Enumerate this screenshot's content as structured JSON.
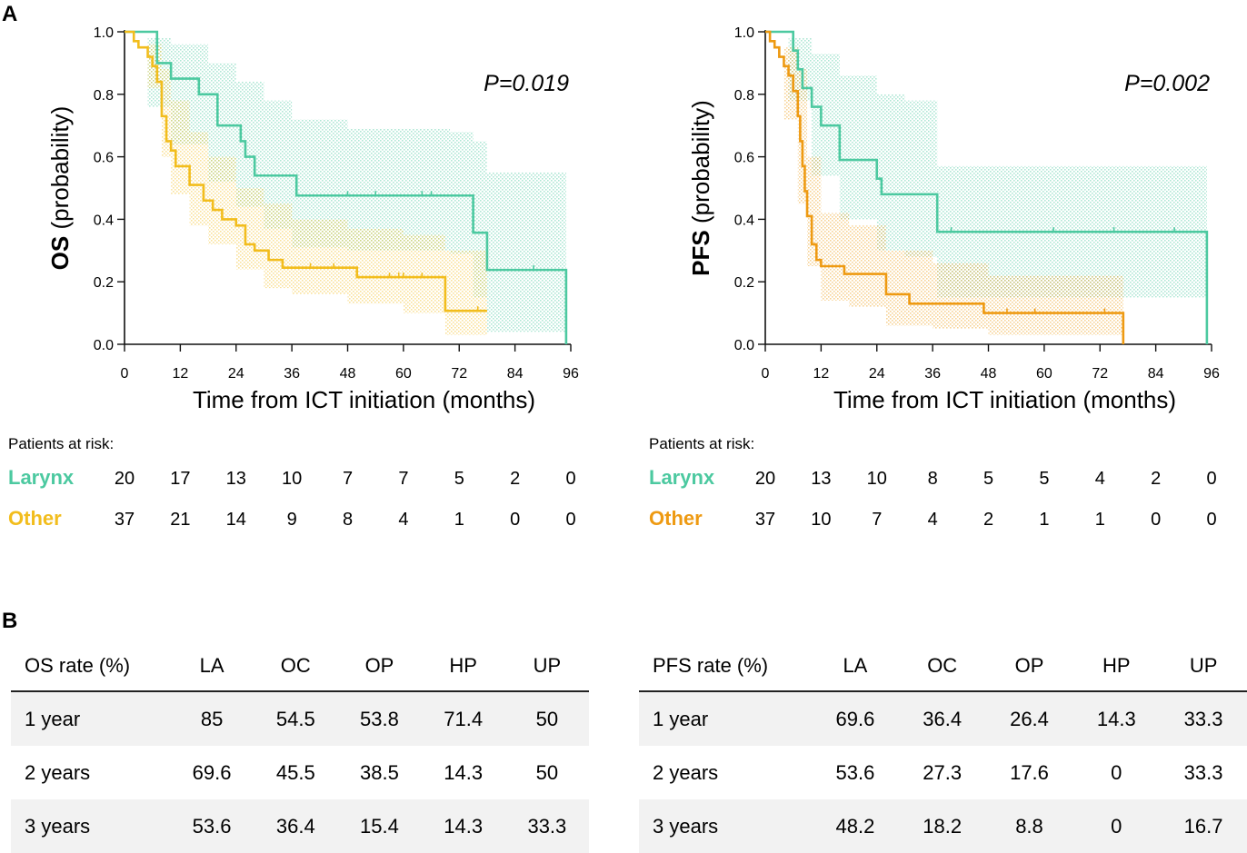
{
  "panel_labels": {
    "a": "A",
    "b": "B"
  },
  "colors": {
    "larynx": "#4cc9a0",
    "other_os": "#f2bd1d",
    "other_pfs": "#ee9a12",
    "axis": "#111111"
  },
  "chart_data": [
    {
      "id": "os",
      "type": "line",
      "title": "",
      "ylabel_bold": "OS",
      "ylabel_rest": " (probability)",
      "xlabel": "Time from ICT initiation (months)",
      "xlim": [
        0,
        96
      ],
      "ylim": [
        0,
        1
      ],
      "xticks": [
        0,
        12,
        24,
        36,
        48,
        60,
        72,
        84,
        96
      ],
      "yticks": [
        "0.0",
        "0.2",
        "0.4",
        "0.6",
        "0.8",
        "1.0"
      ],
      "pvalue": "P=0.019",
      "series": [
        {
          "name": "Larynx",
          "color": "#4cc9a0",
          "steps": [
            [
              0,
              1
            ],
            [
              7,
              0.9
            ],
            [
              10,
              0.85
            ],
            [
              16,
              0.8
            ],
            [
              20,
              0.7
            ],
            [
              25,
              0.65
            ],
            [
              26,
              0.6
            ],
            [
              28,
              0.54
            ],
            [
              37,
              0.476
            ],
            [
              75,
              0.357
            ],
            [
              78,
              0.238
            ],
            [
              95,
              0
            ]
          ],
          "end": 95,
          "censor": [
            [
              37,
              0.476
            ],
            [
              48,
              0.476
            ],
            [
              54,
              0.476
            ],
            [
              64,
              0.476
            ],
            [
              66,
              0.476
            ],
            [
              88,
              0.238
            ]
          ],
          "ci": [
            [
              0,
              1,
              1
            ],
            [
              5,
              0.98,
              0.76
            ],
            [
              10,
              0.96,
              0.64
            ],
            [
              18,
              0.9,
              0.52
            ],
            [
              24,
              0.84,
              0.44
            ],
            [
              30,
              0.78,
              0.37
            ],
            [
              36,
              0.72,
              0.31
            ],
            [
              48,
              0.69,
              0.3
            ],
            [
              70,
              0.68,
              0.29
            ],
            [
              75,
              0.65,
              0.15
            ],
            [
              78,
              0.55,
              0.04
            ],
            [
              95,
              0.5,
              0
            ]
          ]
        },
        {
          "name": "Other",
          "color": "#f2bd1d",
          "steps": [
            [
              0,
              1
            ],
            [
              2,
              0.97
            ],
            [
              3,
              0.95
            ],
            [
              5,
              0.92
            ],
            [
              6,
              0.89
            ],
            [
              7,
              0.84
            ],
            [
              8,
              0.73
            ],
            [
              9,
              0.65
            ],
            [
              10,
              0.62
            ],
            [
              11,
              0.57
            ],
            [
              14,
              0.51
            ],
            [
              17,
              0.46
            ],
            [
              19,
              0.43
            ],
            [
              21,
              0.4
            ],
            [
              24,
              0.38
            ],
            [
              26,
              0.32
            ],
            [
              28,
              0.3
            ],
            [
              31,
              0.27
            ],
            [
              34,
              0.245
            ],
            [
              50,
              0.215
            ],
            [
              69,
              0.107
            ],
            [
              78,
              0.107
            ]
          ],
          "end": 78,
          "censor": [
            [
              40,
              0.245
            ],
            [
              45,
              0.245
            ],
            [
              57,
              0.215
            ],
            [
              59,
              0.215
            ],
            [
              60,
              0.215
            ],
            [
              64,
              0.215
            ],
            [
              76,
              0.107
            ]
          ],
          "ci": [
            [
              0,
              1,
              1
            ],
            [
              5,
              0.96,
              0.82
            ],
            [
              8,
              0.88,
              0.6
            ],
            [
              10,
              0.78,
              0.48
            ],
            [
              14,
              0.68,
              0.38
            ],
            [
              18,
              0.6,
              0.32
            ],
            [
              24,
              0.5,
              0.24
            ],
            [
              30,
              0.45,
              0.18
            ],
            [
              36,
              0.4,
              0.16
            ],
            [
              48,
              0.37,
              0.13
            ],
            [
              60,
              0.35,
              0.1
            ],
            [
              69,
              0.3,
              0.03
            ],
            [
              78,
              0.28,
              0.02
            ]
          ]
        }
      ],
      "risk_header": "Patients at risk:",
      "risk": [
        {
          "name": "Larynx",
          "values": [
            "20",
            "17",
            "13",
            "10",
            "7",
            "7",
            "5",
            "2",
            "0"
          ]
        },
        {
          "name": "Other",
          "values": [
            "37",
            "21",
            "14",
            "9",
            "8",
            "4",
            "1",
            "0",
            "0"
          ]
        }
      ]
    },
    {
      "id": "pfs",
      "type": "line",
      "title": "",
      "ylabel_bold": "PFS",
      "ylabel_rest": " (probability)",
      "xlabel": "Time from ICT initiation (months)",
      "xlim": [
        0,
        96
      ],
      "ylim": [
        0,
        1
      ],
      "xticks": [
        0,
        12,
        24,
        36,
        48,
        60,
        72,
        84,
        96
      ],
      "yticks": [
        "0.0",
        "0.2",
        "0.4",
        "0.6",
        "0.8",
        "1.0"
      ],
      "pvalue": "P=0.002",
      "series": [
        {
          "name": "Larynx",
          "color": "#4cc9a0",
          "steps": [
            [
              0,
              1
            ],
            [
              6,
              0.94
            ],
            [
              7,
              0.88
            ],
            [
              8,
              0.82
            ],
            [
              10,
              0.76
            ],
            [
              12,
              0.7
            ],
            [
              16,
              0.59
            ],
            [
              24,
              0.53
            ],
            [
              25,
              0.48
            ],
            [
              37,
              0.36
            ],
            [
              95,
              0
            ]
          ],
          "end": 95,
          "censor": [
            [
              40,
              0.36
            ],
            [
              62,
              0.36
            ],
            [
              75,
              0.36
            ],
            [
              88,
              0.36
            ]
          ],
          "ci": [
            [
              0,
              1,
              1
            ],
            [
              5,
              0.98,
              0.78
            ],
            [
              10,
              0.93,
              0.54
            ],
            [
              16,
              0.86,
              0.4
            ],
            [
              24,
              0.8,
              0.3
            ],
            [
              30,
              0.78,
              0.28
            ],
            [
              37,
              0.57,
              0.15
            ],
            [
              60,
              0.57,
              0.15
            ],
            [
              90,
              0.57,
              0.15
            ],
            [
              95,
              0.55,
              0
            ]
          ]
        },
        {
          "name": "Other",
          "color": "#ee9a12",
          "steps": [
            [
              0,
              1
            ],
            [
              1,
              0.97
            ],
            [
              2,
              0.95
            ],
            [
              3,
              0.92
            ],
            [
              4,
              0.89
            ],
            [
              5,
              0.86
            ],
            [
              6,
              0.81
            ],
            [
              7,
              0.73
            ],
            [
              7.5,
              0.65
            ],
            [
              8,
              0.57
            ],
            [
              8.5,
              0.49
            ],
            [
              9,
              0.41
            ],
            [
              10,
              0.32
            ],
            [
              11,
              0.27
            ],
            [
              12,
              0.25
            ],
            [
              17,
              0.225
            ],
            [
              26,
              0.16
            ],
            [
              31,
              0.13
            ],
            [
              47,
              0.1
            ],
            [
              77,
              0
            ]
          ],
          "end": 77,
          "censor": [
            [
              52,
              0.1
            ],
            [
              58,
              0.1
            ],
            [
              73,
              0.1
            ]
          ],
          "ci": [
            [
              0,
              1,
              1
            ],
            [
              4,
              0.95,
              0.72
            ],
            [
              7,
              0.88,
              0.45
            ],
            [
              9,
              0.6,
              0.25
            ],
            [
              12,
              0.42,
              0.14
            ],
            [
              18,
              0.38,
              0.12
            ],
            [
              26,
              0.3,
              0.06
            ],
            [
              36,
              0.26,
              0.05
            ],
            [
              48,
              0.22,
              0.03
            ],
            [
              77,
              0.16,
              0
            ]
          ]
        }
      ],
      "risk_header": "Patients at risk:",
      "risk": [
        {
          "name": "Larynx",
          "values": [
            "20",
            "13",
            "10",
            "8",
            "5",
            "5",
            "4",
            "2",
            "0"
          ]
        },
        {
          "name": "Other",
          "values": [
            "37",
            "10",
            "7",
            "4",
            "2",
            "1",
            "1",
            "0",
            "0"
          ]
        }
      ]
    }
  ],
  "tables": {
    "os": {
      "headers": [
        "OS rate (%)",
        "LA",
        "OC",
        "OP",
        "HP",
        "UP"
      ],
      "rows": [
        [
          "1 year",
          "85",
          "54.5",
          "53.8",
          "71.4",
          "50"
        ],
        [
          "2 years",
          "69.6",
          "45.5",
          "38.5",
          "14.3",
          "50"
        ],
        [
          "3 years",
          "53.6",
          "36.4",
          "15.4",
          "14.3",
          "33.3"
        ]
      ]
    },
    "pfs": {
      "headers": [
        "PFS rate (%)",
        "LA",
        "OC",
        "OP",
        "HP",
        "UP"
      ],
      "rows": [
        [
          "1 year",
          "69.6",
          "36.4",
          "26.4",
          "14.3",
          "33.3"
        ],
        [
          "2 years",
          "53.6",
          "27.3",
          "17.6",
          "0",
          "33.3"
        ],
        [
          "3 years",
          "48.2",
          "18.2",
          "8.8",
          "0",
          "16.7"
        ]
      ]
    }
  }
}
